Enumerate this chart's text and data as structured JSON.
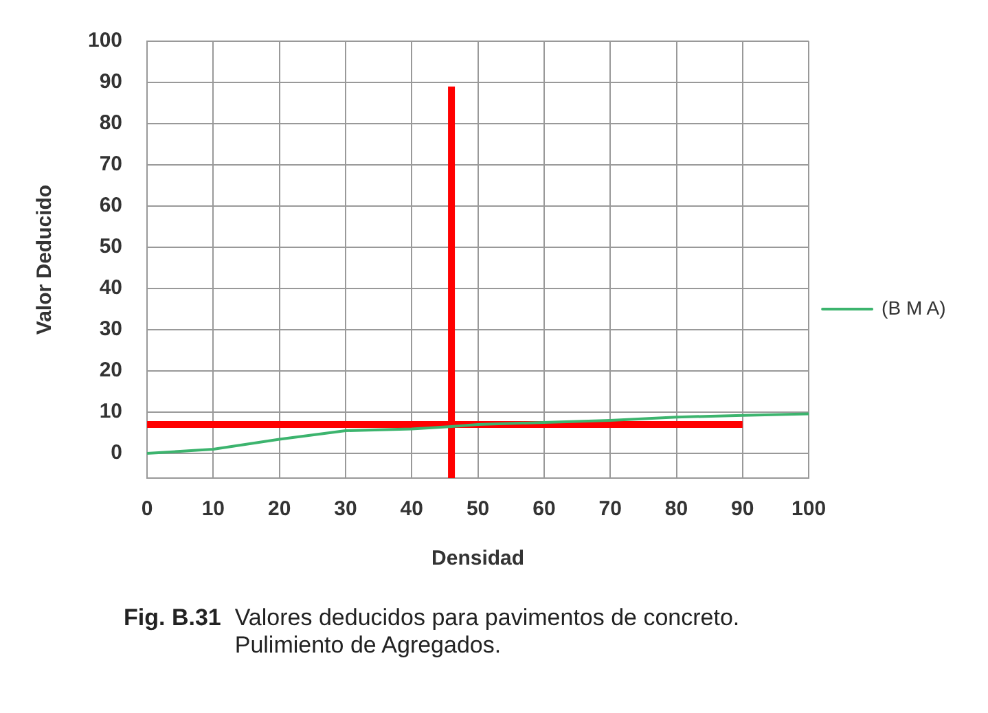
{
  "chart_data": {
    "type": "line",
    "xlabel": "Densidad",
    "ylabel": "Valor Deducido",
    "xlim": [
      0,
      100
    ],
    "xticks": [
      0,
      10,
      20,
      30,
      40,
      50,
      60,
      70,
      80,
      90,
      100
    ],
    "ylim": [
      -6,
      100
    ],
    "yticks": [
      0,
      10,
      20,
      30,
      40,
      50,
      60,
      70,
      80,
      90,
      100
    ],
    "grid": true,
    "legend": "right",
    "marker": "none",
    "series": [
      {
        "name": "(B M A)",
        "color": "#3cb46e",
        "x": [
          0,
          10,
          20,
          30,
          40,
          46,
          50,
          60,
          70,
          80,
          90,
          100
        ],
        "values": [
          0,
          1,
          3.4,
          5.5,
          5.9,
          6.5,
          7,
          7.5,
          8,
          8.8,
          9.2,
          9.6
        ]
      },
      {
        "color": "#ff0000",
        "x": [
          0,
          90
        ],
        "values": [
          7,
          7
        ]
      },
      {
        "color": "#ff0000",
        "x": [
          46,
          46
        ],
        "values": [
          -6,
          89
        ]
      }
    ],
    "annotations": [
      "Fig. B.31",
      "Valores deducidos para pavimentos de concreto.\nPulimiento de Agregados."
    ]
  }
}
